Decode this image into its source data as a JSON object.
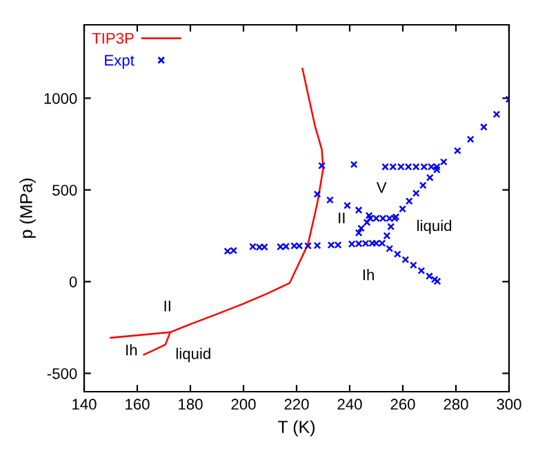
{
  "chart_data": {
    "type": "line",
    "xlabel": "T (K)",
    "ylabel": "p (MPa)",
    "xlim": [
      140,
      300
    ],
    "ylim": [
      -600,
      1400
    ],
    "xticks": [
      140,
      160,
      180,
      200,
      220,
      240,
      260,
      280,
      300
    ],
    "yticks": [
      -500,
      0,
      500,
      1000
    ],
    "grid": false,
    "legend": "top left",
    "series": [
      {
        "name": "TIP3P",
        "color": "#ff0000",
        "marker": "none",
        "x": [
          150,
          172.4,
          180,
          191.4,
          200,
          208.7,
          217.4,
          224.3,
          227.8,
          230,
          229.5,
          226.9,
          222.2
        ],
        "values": [
          -306,
          -276,
          -232,
          -169,
          -120,
          -67,
          -7,
          204,
          427,
          614,
          720,
          850,
          1161
        ]
      },
      {
        "color": "#ff0000",
        "marker": "none",
        "x": [
          172.4,
          170.6,
          166,
          162.5
        ],
        "values": [
          -276,
          -343,
          -375,
          -398
        ]
      },
      {
        "name": "Expt",
        "color": "#0000ff",
        "type": "scatter",
        "marker": "cross",
        "x": [
          194,
          196.3,
          203.5,
          206,
          207.9,
          213.9,
          216,
          219.1,
          221,
          224.3,
          227.8,
          233,
          235.6,
          240.8,
          243.4,
          246,
          248.5,
          250,
          252.2,
          255,
          258,
          261,
          264,
          267,
          270,
          272,
          273,
          247.7,
          250,
          252.5,
          255,
          256.9,
          254,
          255.5,
          257.4,
          259.9,
          262.4,
          265,
          267.6,
          270.2,
          272.8,
          275.4,
          280.6,
          285.5,
          290.5,
          295.3,
          300,
          227.8,
          232.6,
          239.1,
          243.4,
          247.3,
          229.5,
          241.6,
          253.4,
          256.3,
          259.3,
          262.1,
          265,
          268,
          270.7,
          272.8,
          243.4,
          244.3,
          246.5
        ],
        "values": [
          166,
          170,
          191,
          188,
          189,
          190,
          192,
          195,
          195,
          195,
          197,
          200,
          200,
          205,
          207,
          208,
          209,
          209,
          209,
          180,
          150,
          120,
          90,
          60,
          30,
          12,
          2,
          345,
          345,
          345,
          345,
          345,
          250,
          300,
          353,
          396,
          439,
          482,
          525,
          567,
          610,
          653,
          714,
          776,
          843,
          912,
          994,
          477,
          445,
          415,
          390,
          360,
          632,
          639,
          626,
          626,
          626,
          626,
          626,
          626,
          626,
          626,
          266,
          291,
          323
        ]
      }
    ],
    "annotations": [
      "II",
      "Ih",
      "liquid",
      "V",
      "II",
      "liquid",
      "Ih"
    ]
  }
}
